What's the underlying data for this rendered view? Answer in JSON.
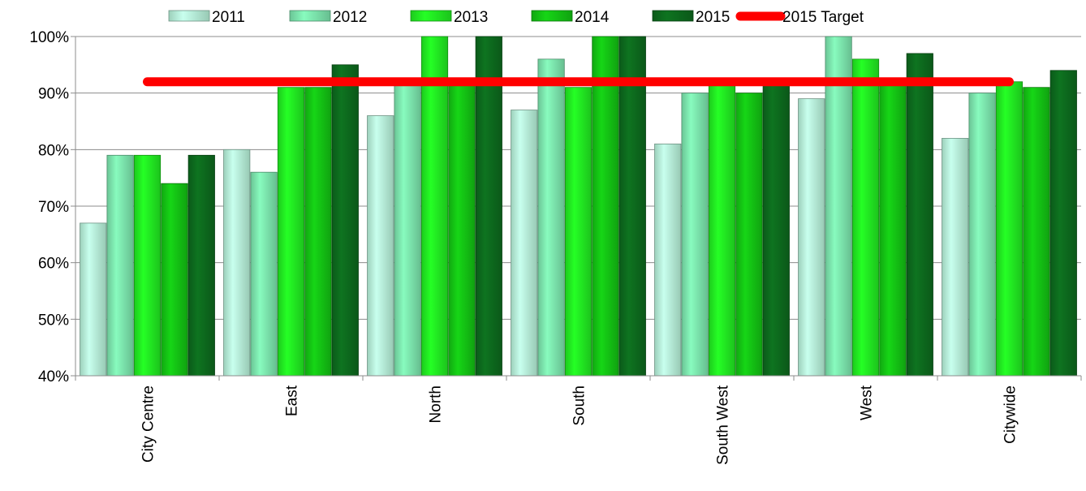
{
  "chart_data": {
    "type": "bar",
    "categories": [
      "City Centre",
      "East",
      "North",
      "South",
      "South West",
      "West",
      "Citywide"
    ],
    "series": [
      {
        "name": "2011",
        "color": "#b9f5dc",
        "values": [
          67,
          80,
          86,
          87,
          81,
          89,
          82
        ]
      },
      {
        "name": "2012",
        "color": "#7ee8b0",
        "values": [
          79,
          76,
          92,
          96,
          90,
          100,
          90
        ]
      },
      {
        "name": "2013",
        "color": "#22ee22",
        "values": [
          79,
          91,
          100,
          91,
          92,
          96,
          92
        ]
      },
      {
        "name": "2014",
        "color": "#14c614",
        "values": [
          74,
          91,
          92,
          100,
          90,
          92,
          91
        ]
      },
      {
        "name": "2015",
        "color": "#0d6b1e",
        "values": [
          79,
          95,
          100,
          100,
          92,
          97,
          94
        ]
      }
    ],
    "target": {
      "name": "2015 Target",
      "value": 92,
      "color": "#ff0000"
    },
    "y_tick_labels": [
      "40%",
      "50%",
      "60%",
      "70%",
      "80%",
      "90%",
      "100%"
    ],
    "ylim": [
      40,
      100
    ],
    "ylabel": "",
    "xlabel": "",
    "title": "",
    "grid": true,
    "legend_position": "top"
  }
}
